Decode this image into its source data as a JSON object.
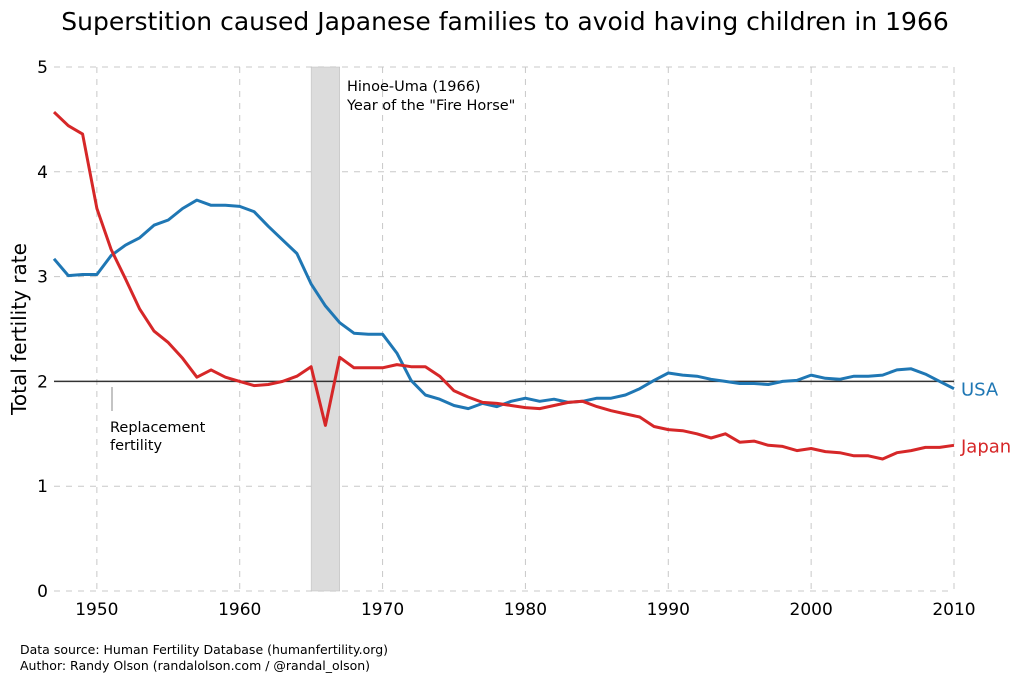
{
  "chart_data": {
    "type": "line",
    "title": "Superstition caused Japanese families to avoid having children in 1966",
    "xlabel": "",
    "ylabel": "Total fertility rate",
    "xlim": [
      1947,
      2010
    ],
    "ylim": [
      0,
      5
    ],
    "xticks": [
      1950,
      1960,
      1970,
      1980,
      1990,
      2000,
      2010
    ],
    "yticks": [
      0,
      1,
      2,
      3,
      4,
      5
    ],
    "grid": true,
    "legend": "inline labels at right end of lines",
    "x": [
      1947,
      1948,
      1949,
      1950,
      1951,
      1952,
      1953,
      1954,
      1955,
      1956,
      1957,
      1958,
      1959,
      1960,
      1961,
      1962,
      1963,
      1964,
      1965,
      1966,
      1967,
      1968,
      1969,
      1970,
      1971,
      1972,
      1973,
      1974,
      1975,
      1976,
      1977,
      1978,
      1979,
      1980,
      1981,
      1982,
      1983,
      1984,
      1985,
      1986,
      1987,
      1988,
      1989,
      1990,
      1991,
      1992,
      1993,
      1994,
      1995,
      1996,
      1997,
      1998,
      1999,
      2000,
      2001,
      2002,
      2003,
      2004,
      2005,
      2006,
      2007,
      2008,
      2009,
      2010
    ],
    "series": [
      {
        "name": "USA",
        "color": "#1f77b4",
        "values": [
          3.17,
          3.01,
          3.02,
          3.02,
          3.2,
          3.3,
          3.37,
          3.49,
          3.54,
          3.65,
          3.73,
          3.68,
          3.68,
          3.67,
          3.62,
          3.48,
          3.35,
          3.22,
          2.93,
          2.72,
          2.56,
          2.46,
          2.45,
          2.45,
          2.27,
          2.01,
          1.87,
          1.83,
          1.77,
          1.74,
          1.79,
          1.76,
          1.81,
          1.84,
          1.81,
          1.83,
          1.8,
          1.81,
          1.84,
          1.84,
          1.87,
          1.93,
          2.01,
          2.08,
          2.06,
          2.05,
          2.02,
          2.0,
          1.98,
          1.98,
          1.97,
          2.0,
          2.01,
          2.06,
          2.03,
          2.02,
          2.05,
          2.05,
          2.06,
          2.11,
          2.12,
          2.07,
          2.0,
          1.93
        ]
      },
      {
        "name": "Japan",
        "color": "#d62728",
        "values": [
          4.57,
          4.44,
          4.36,
          3.65,
          3.26,
          2.98,
          2.69,
          2.48,
          2.37,
          2.22,
          2.04,
          2.11,
          2.04,
          2.0,
          1.96,
          1.97,
          2.0,
          2.05,
          2.14,
          1.58,
          2.23,
          2.13,
          2.13,
          2.13,
          2.16,
          2.14,
          2.14,
          2.05,
          1.91,
          1.85,
          1.8,
          1.79,
          1.77,
          1.75,
          1.74,
          1.77,
          1.8,
          1.81,
          1.76,
          1.72,
          1.69,
          1.66,
          1.57,
          1.54,
          1.53,
          1.5,
          1.46,
          1.5,
          1.42,
          1.43,
          1.39,
          1.38,
          1.34,
          1.36,
          1.33,
          1.32,
          1.29,
          1.29,
          1.26,
          1.32,
          1.34,
          1.37,
          1.37,
          1.39
        ]
      }
    ],
    "reference_line": {
      "y": 2,
      "label_line1": "Replacement",
      "label_line2": "fertility"
    },
    "highlight_band": {
      "x": [
        1965,
        1967
      ],
      "label_line1": "Hinoe-Uma (1966)",
      "label_line2": "Year of the \"Fire Horse\""
    },
    "footer_line1": "Data source: Human Fertility Database (humanfertility.org)",
    "footer_line2": "Author: Randy Olson (randalolson.com / @randal_olson)"
  }
}
